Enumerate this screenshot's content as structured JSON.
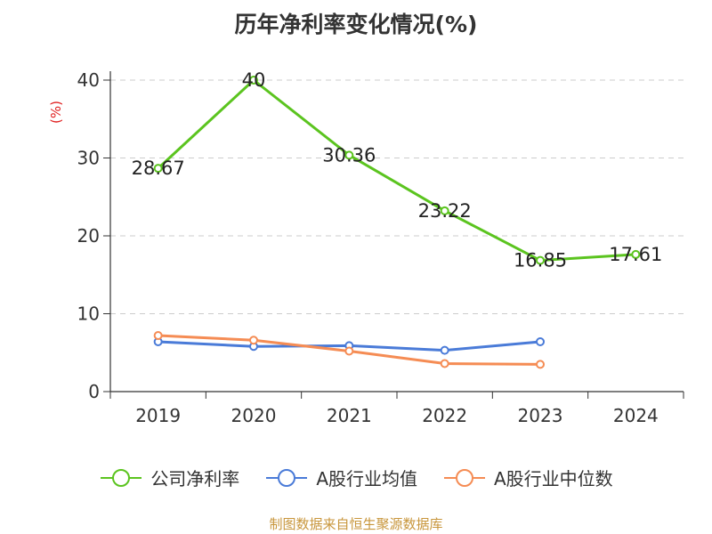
{
  "chart_data": {
    "type": "line",
    "title": "历年净利率变化情况(%)",
    "ylabel": "(%)",
    "categories": [
      "2019",
      "2020",
      "2021",
      "2022",
      "2023",
      "2024"
    ],
    "ylim": [
      0,
      40
    ],
    "yticks": [
      0,
      10,
      20,
      30,
      40
    ],
    "grid": true,
    "legend_position": "bottom",
    "series": [
      {
        "name": "公司净利率",
        "color": "#5bc41f",
        "values": [
          28.67,
          40,
          30.36,
          23.22,
          16.85,
          17.61
        ],
        "labels": [
          "28.67",
          "40",
          "30.36",
          "23.22",
          "16.85",
          "17.61"
        ]
      },
      {
        "name": "A股行业均值",
        "color": "#4a7bd8",
        "values": [
          6.4,
          5.8,
          5.9,
          5.3,
          6.4,
          null
        ]
      },
      {
        "name": "A股行业中位数",
        "color": "#f58c54",
        "values": [
          7.2,
          6.6,
          5.2,
          3.6,
          3.5,
          null
        ]
      }
    ]
  },
  "footer": "制图数据来自恒生聚源数据库"
}
